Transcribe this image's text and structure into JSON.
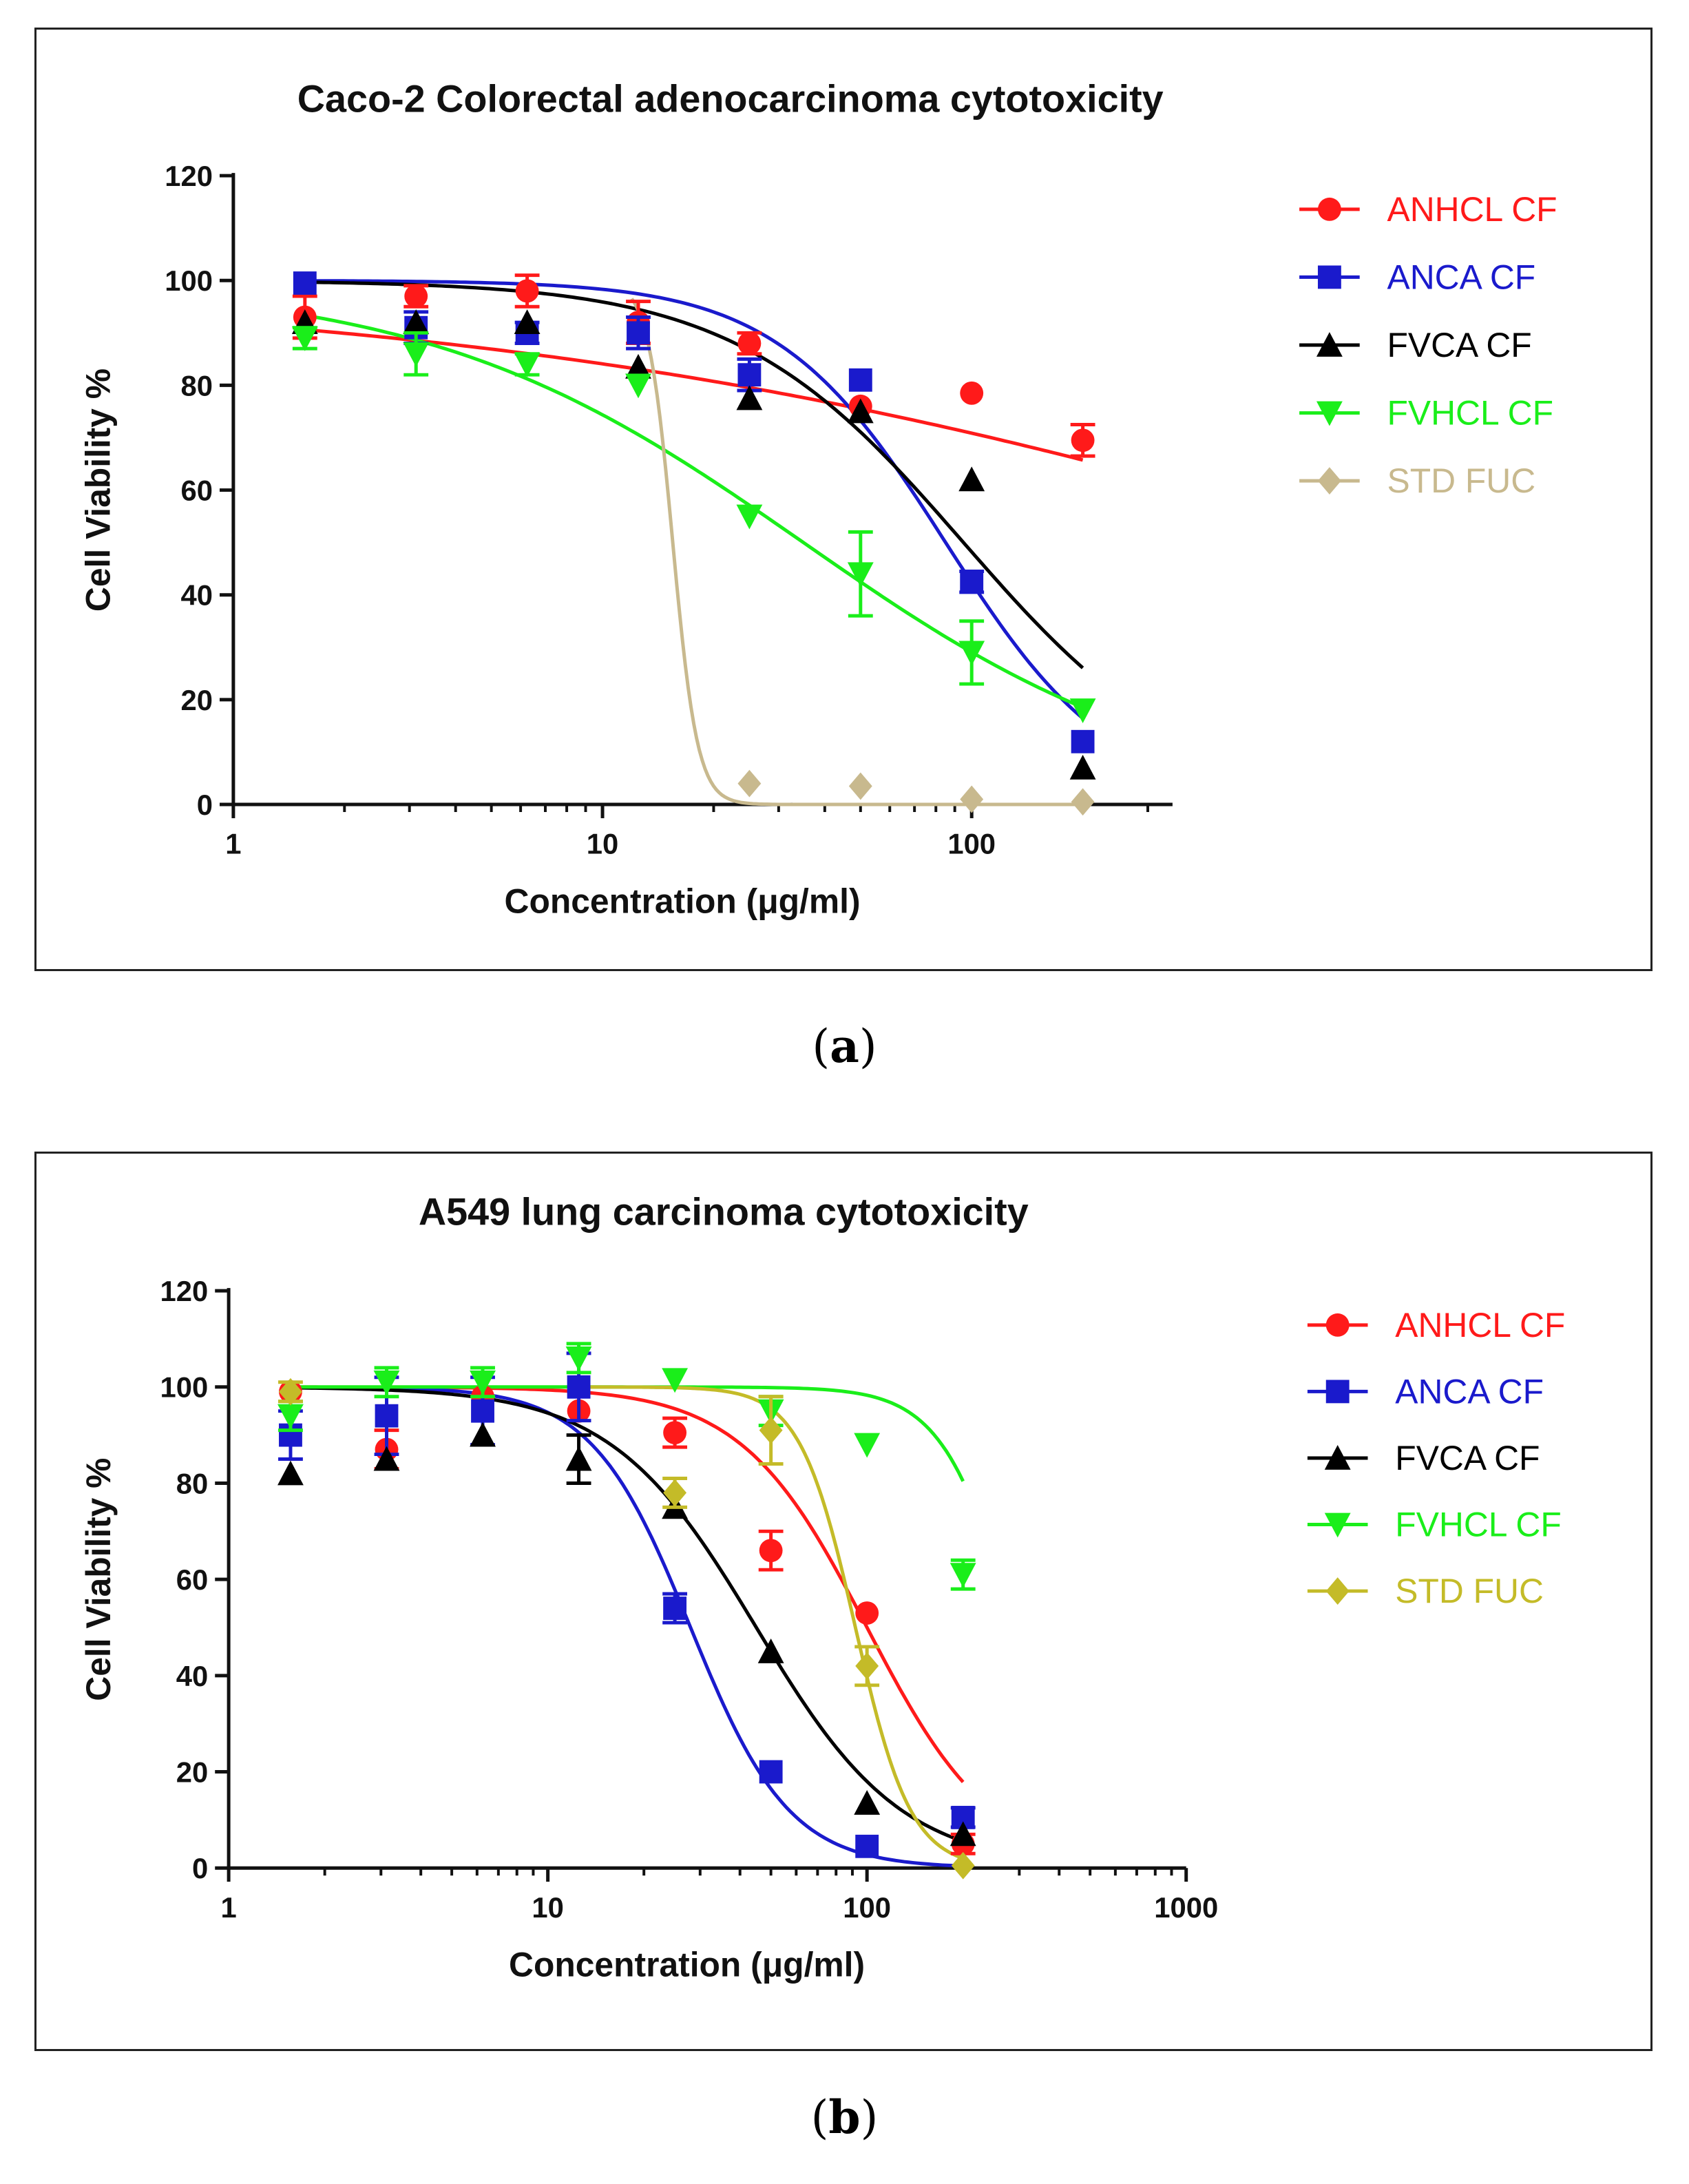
{
  "chart_data": [
    {
      "type": "scatter",
      "panel": "a",
      "title": "Caco-2 Colorectal adenocarcinoma cytotoxicity",
      "xlabel": "Concentration (μg/ml)",
      "ylabel": "Cell Viability %",
      "xscale": "log",
      "xlim": [
        1,
        350
      ],
      "ylim": [
        0,
        120
      ],
      "xticks": [
        1,
        10,
        100
      ],
      "xtick_labels": [
        "1",
        "10",
        "100"
      ],
      "yticks": [
        0,
        20,
        40,
        60,
        80,
        100,
        120
      ],
      "ytick_labels": [
        "0",
        "20",
        "40",
        "60",
        "80",
        "100",
        "120"
      ],
      "grid": false,
      "legend_position": "right",
      "series": [
        {
          "name": "ANHCL CF",
          "color": "#ff1a1a",
          "marker": "circle",
          "x": [
            1.5625,
            3.125,
            6.25,
            12.5,
            25,
            50,
            100,
            200
          ],
          "y": [
            93,
            97,
            98,
            92,
            88,
            76,
            78.5,
            69.5
          ],
          "err": [
            4,
            2,
            3,
            4,
            2,
            0,
            0,
            3
          ],
          "fit": {
            "top": 99,
            "bottom": 0,
            "ic50": 1400,
            "hill": 0.35
          }
        },
        {
          "name": "ANCA CF",
          "color": "#1a1acc",
          "marker": "square",
          "x": [
            1.5625,
            3.125,
            6.25,
            12.5,
            25,
            50,
            100,
            200
          ],
          "y": [
            99.5,
            91,
            90,
            90,
            82,
            81,
            42.5,
            12
          ],
          "err": [
            0,
            3,
            2,
            3,
            3,
            0,
            2,
            0
          ],
          "fit": {
            "top": 100,
            "bottom": 0,
            "ic50": 85,
            "hill": 1.9
          }
        },
        {
          "name": "FVCA CF",
          "color": "#000000",
          "marker": "triangle-up",
          "x": [
            1.5625,
            3.125,
            6.25,
            12.5,
            25,
            50,
            100,
            200
          ],
          "y": [
            92,
            92,
            92,
            83.5,
            77.5,
            75,
            62,
            7
          ],
          "err": [
            0,
            0,
            0,
            0,
            0,
            0,
            0,
            0
          ],
          "fit": {
            "top": 100,
            "bottom": 0,
            "ic50": 95,
            "hill": 1.4
          }
        },
        {
          "name": "FVHCL CF",
          "color": "#1aee1a",
          "marker": "triangle-down",
          "x": [
            1.5625,
            3.125,
            6.25,
            12.5,
            25,
            50,
            100,
            200
          ],
          "y": [
            89,
            86,
            84,
            80,
            55,
            44,
            29,
            18
          ],
          "err": [
            2,
            4,
            2,
            0,
            0,
            8,
            6,
            0
          ],
          "fit": {
            "top": 100,
            "bottom": 0,
            "ic50": 35,
            "hill": 0.85
          }
        },
        {
          "name": "STD FUC",
          "color": "#c8b98e",
          "marker": "diamond",
          "x": [
            25,
            50,
            100,
            200
          ],
          "y": [
            4,
            3.5,
            1,
            0.5
          ],
          "err": [
            0,
            0,
            0,
            0
          ],
          "fit": {
            "top": 100,
            "bottom": 0,
            "ic50": 15.5,
            "hill": 13,
            "xmin": 12
          }
        }
      ]
    },
    {
      "type": "scatter",
      "panel": "b",
      "title": "A549 lung carcinoma cytotoxicity",
      "xlabel": "Concentration (μg/ml)",
      "ylabel": "Cell Viability %",
      "xscale": "log",
      "xlim": [
        1,
        1000
      ],
      "ylim": [
        0,
        120
      ],
      "xticks": [
        1,
        10,
        100,
        1000
      ],
      "xtick_labels": [
        "1",
        "10",
        "100",
        "1000"
      ],
      "yticks": [
        0,
        20,
        40,
        60,
        80,
        100,
        120
      ],
      "ytick_labels": [
        "0",
        "20",
        "40",
        "60",
        "80",
        "100",
        "120"
      ],
      "grid": false,
      "legend_position": "right",
      "series": [
        {
          "name": "ANHCL CF",
          "color": "#ff1a1a",
          "marker": "circle",
          "x": [
            1.5625,
            3.125,
            6.25,
            12.5,
            25,
            50,
            100,
            200
          ],
          "y": [
            99,
            87,
            98,
            95,
            90.5,
            66,
            53,
            5
          ],
          "err": [
            0,
            4,
            0,
            0,
            3,
            4,
            0,
            2
          ],
          "fit": {
            "top": 100,
            "bottom": 0,
            "ic50": 100,
            "hill": 2.2
          }
        },
        {
          "name": "ANCA CF",
          "color": "#1a1acc",
          "marker": "square",
          "x": [
            1.5625,
            3.125,
            6.25,
            12.5,
            25,
            50,
            100,
            200
          ],
          "y": [
            90,
            94,
            95,
            100,
            54,
            20,
            4.5,
            10.5
          ],
          "err": [
            5,
            8,
            7,
            7,
            3,
            0,
            0,
            2
          ],
          "fit": {
            "top": 100,
            "bottom": 0,
            "ic50": 28,
            "hill": 2.8
          }
        },
        {
          "name": "FVCA CF",
          "color": "#000000",
          "marker": "triangle-up",
          "x": [
            1.5625,
            3.125,
            6.25,
            12.5,
            25,
            50,
            100,
            200
          ],
          "y": [
            82,
            85,
            90,
            85,
            75,
            45,
            13.5,
            7
          ],
          "err": [
            0,
            0,
            0,
            5,
            0,
            0,
            0,
            0
          ],
          "fit": {
            "top": 100,
            "bottom": 0,
            "ic50": 45,
            "hill": 1.9
          }
        },
        {
          "name": "FVHCL CF",
          "color": "#1aee1a",
          "marker": "triangle-down",
          "x": [
            1.5625,
            3.125,
            6.25,
            12.5,
            25,
            50,
            100,
            200
          ],
          "y": [
            94,
            101,
            101,
            106,
            101.5,
            95,
            88,
            61
          ],
          "err": [
            3,
            3,
            3,
            3,
            0,
            3,
            0,
            3
          ],
          "fit": {
            "top": 100,
            "bottom": 0,
            "ic50": 290,
            "hill": 3.8
          }
        },
        {
          "name": "STD FUC",
          "color": "#c4bb28",
          "marker": "diamond",
          "x": [
            1.5625,
            25,
            50,
            100,
            200
          ],
          "y": [
            99,
            78,
            91,
            42,
            0.5
          ],
          "err": [
            2,
            3,
            7,
            4,
            0
          ],
          "fit": {
            "top": 100,
            "bottom": 0,
            "ic50": 92,
            "hill": 5,
            "xmin": 12
          }
        }
      ]
    }
  ],
  "captions": {
    "a": "a",
    "b": "b"
  }
}
